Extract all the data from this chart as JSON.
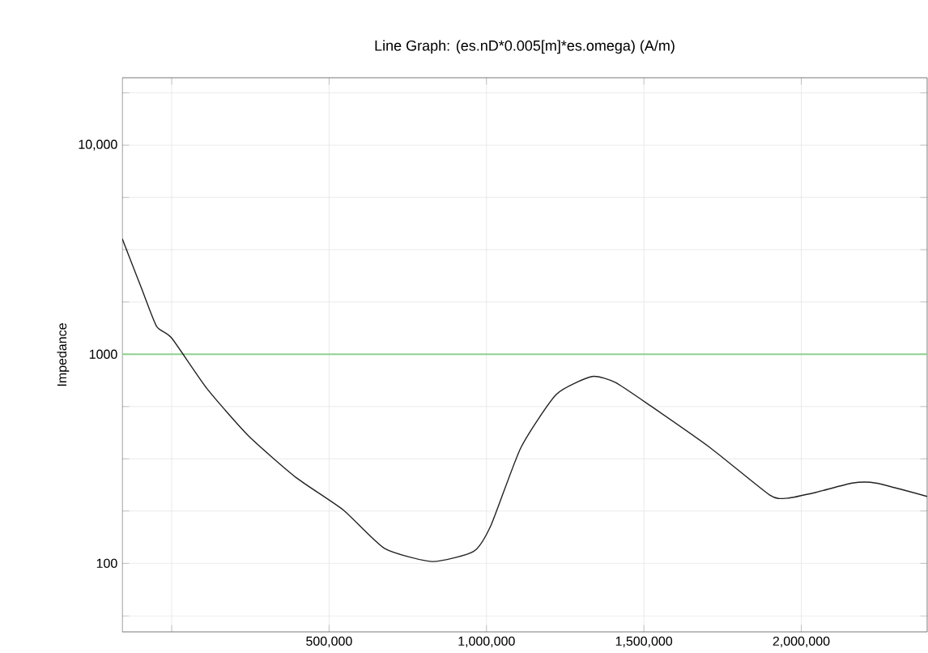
{
  "chart_data": {
    "type": "line",
    "title": "Line Graph: (es.nD*0.005[m]*es.omega) (A/m)",
    "ylabel": "Impedance",
    "log": "y",
    "grid": true,
    "marker": "none",
    "line_style": "solid",
    "xlim": [
      -157000,
      2400000
    ],
    "ylim": [
      47,
      21000
    ],
    "xticks": [
      {
        "value": 0,
        "label": null
      },
      {
        "value": 500000,
        "label": "500,000"
      },
      {
        "value": 1000000,
        "label": "1,000,000"
      },
      {
        "value": 1500000,
        "label": "1,500,000"
      },
      {
        "value": 2000000,
        "label": "2,000,000"
      }
    ],
    "yticks": [
      {
        "value": 56,
        "label": null
      },
      {
        "value": 100,
        "label": "100"
      },
      {
        "value": 178,
        "label": null
      },
      {
        "value": 316,
        "label": null
      },
      {
        "value": 562,
        "label": null
      },
      {
        "value": 1000,
        "label": "1000"
      },
      {
        "value": 1778,
        "label": null
      },
      {
        "value": 3162,
        "label": null
      },
      {
        "value": 5623,
        "label": null
      },
      {
        "value": 10000,
        "label": "10,000"
      },
      {
        "value": 17783,
        "label": null
      }
    ],
    "x": [
      -157000,
      -95000,
      -48000,
      0,
      112000,
      244000,
      394000,
      545000,
      676000,
      827000,
      959000,
      1015000,
      1109000,
      1222000,
      1335000,
      1410000,
      1523000,
      1711000,
      1900000,
      1956000,
      2049000,
      2162000,
      2237000,
      2400000
    ],
    "series": [
      {
        "color": "#222222",
        "values": [
          3565,
          2050,
          1360,
          1195,
          685,
          407,
          258,
          180,
          118,
          102,
          114,
          153,
          357,
          643,
          782,
          732,
          564,
          357,
          212,
          205,
          219,
          242,
          242,
          209
        ]
      }
    ],
    "ref_lines": [
      {
        "axis": "y",
        "value": 1000,
        "color": "#8fd18f"
      }
    ]
  }
}
